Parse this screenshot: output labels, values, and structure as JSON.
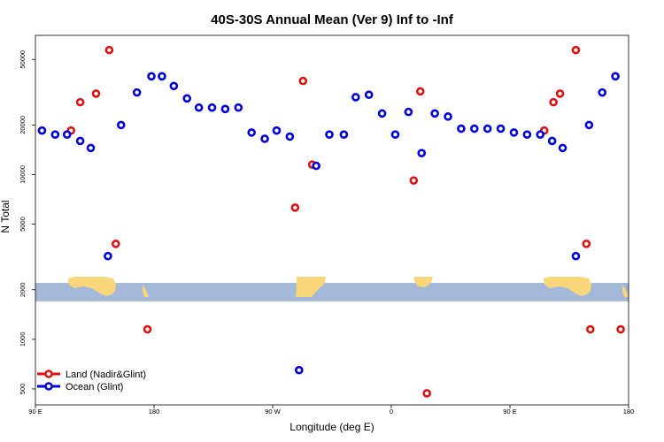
{
  "chart_data": {
    "type": "scatter",
    "title": "40S-30S Annual Mean (Ver 9)   Inf to -Inf",
    "xlabel": "Longitude (deg E)",
    "ylabel": "N Total",
    "x_scale": "linear",
    "y_scale": "log",
    "xlim": [
      90,
      540
    ],
    "ylim": [
      400,
      70000
    ],
    "x_ticks": [
      {
        "value": 90,
        "label": "90 E"
      },
      {
        "value": 180,
        "label": "180"
      },
      {
        "value": 270,
        "label": "90 W"
      },
      {
        "value": 360,
        "label": "0"
      },
      {
        "value": 450,
        "label": "90 E"
      },
      {
        "value": 540,
        "label": "180"
      }
    ],
    "y_ticks": [
      {
        "value": 500,
        "label": "500"
      },
      {
        "value": 1000,
        "label": "1000"
      },
      {
        "value": 2000,
        "label": "2000"
      },
      {
        "value": 5000,
        "label": "5000"
      },
      {
        "value": 10000,
        "label": "10000"
      },
      {
        "value": 20000,
        "label": "20000"
      },
      {
        "value": 50000,
        "label": "50000"
      }
    ],
    "map_strip": {
      "y_range": [
        1700,
        2200
      ],
      "ocean_color": "#a4b8d8",
      "land_color": "#fad67a"
    },
    "legend": {
      "position": "bottom-left"
    },
    "series": [
      {
        "name": "Land (Nadir&Glint)",
        "color": "#e01010",
        "x": [
          117,
          124,
          136,
          146,
          151,
          175,
          287,
          293,
          300,
          377,
          382,
          387,
          476,
          483,
          488,
          500,
          508,
          511,
          534
        ],
        "y": [
          18500,
          27500,
          31000,
          57000,
          3800,
          1150,
          6300,
          37000,
          11500,
          9200,
          32000,
          470,
          18500,
          27500,
          31000,
          57000,
          3800,
          1150,
          1150
        ]
      },
      {
        "name": "Ocean (Glint)",
        "color": "#0000dd",
        "x": [
          95,
          105,
          114,
          124,
          132,
          145,
          155,
          167,
          178,
          186,
          195,
          205,
          214,
          224,
          234,
          244,
          254,
          264,
          273,
          283,
          290,
          303,
          313,
          324,
          333,
          343,
          353,
          363,
          373,
          383,
          393,
          403,
          413,
          423,
          433,
          443,
          453,
          463,
          473,
          482,
          490,
          500,
          510,
          520,
          530
        ],
        "y": [
          18500,
          17500,
          17500,
          16000,
          14500,
          3200,
          20000,
          31500,
          39500,
          39500,
          34500,
          29000,
          25500,
          25500,
          25000,
          25500,
          18000,
          16500,
          18500,
          17000,
          650,
          11300,
          17500,
          17500,
          29500,
          30500,
          23500,
          17500,
          24000,
          13500,
          23500,
          22500,
          19000,
          19000,
          19000,
          19000,
          18000,
          17500,
          17500,
          16000,
          14500,
          3200,
          20000,
          31500,
          39500
        ]
      }
    ]
  }
}
